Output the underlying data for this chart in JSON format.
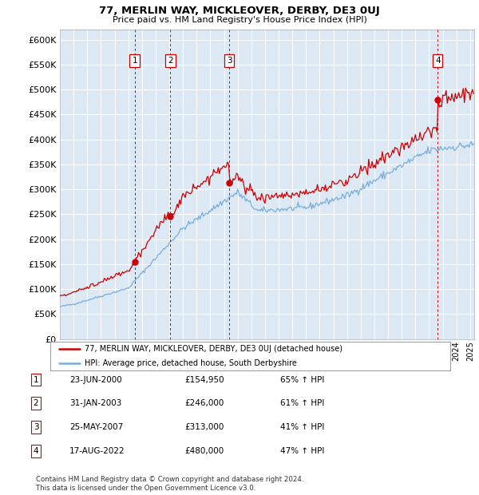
{
  "title": "77, MERLIN WAY, MICKLEOVER, DERBY, DE3 0UJ",
  "subtitle": "Price paid vs. HM Land Registry's House Price Index (HPI)",
  "ylim": [
    0,
    620000
  ],
  "yticks": [
    0,
    50000,
    100000,
    150000,
    200000,
    250000,
    300000,
    350000,
    400000,
    450000,
    500000,
    550000,
    600000
  ],
  "xlim_start": 1995.0,
  "xlim_end": 2025.3,
  "bg_color": "#dce9f5",
  "grid_color": "#ffffff",
  "sales": [
    {
      "date_num": 2000.47,
      "price": 154950,
      "label": "1"
    },
    {
      "date_num": 2003.08,
      "price": 246000,
      "label": "2"
    },
    {
      "date_num": 2007.39,
      "price": 313000,
      "label": "3"
    },
    {
      "date_num": 2022.63,
      "price": 480000,
      "label": "4"
    }
  ],
  "legend_entries": [
    "77, MERLIN WAY, MICKLEOVER, DERBY, DE3 0UJ (detached house)",
    "HPI: Average price, detached house, South Derbyshire"
  ],
  "table_rows": [
    {
      "num": "1",
      "date": "23-JUN-2000",
      "price": "£154,950",
      "change": "65% ↑ HPI"
    },
    {
      "num": "2",
      "date": "31-JAN-2003",
      "price": "£246,000",
      "change": "61% ↑ HPI"
    },
    {
      "num": "3",
      "date": "25-MAY-2007",
      "price": "£313,000",
      "change": "41% ↑ HPI"
    },
    {
      "num": "4",
      "date": "17-AUG-2022",
      "price": "£480,000",
      "change": "47% ↑ HPI"
    }
  ],
  "footnote": "Contains HM Land Registry data © Crown copyright and database right 2024.\nThis data is licensed under the Open Government Licence v3.0.",
  "red_color": "#cc0000",
  "blue_color": "#7aadda"
}
